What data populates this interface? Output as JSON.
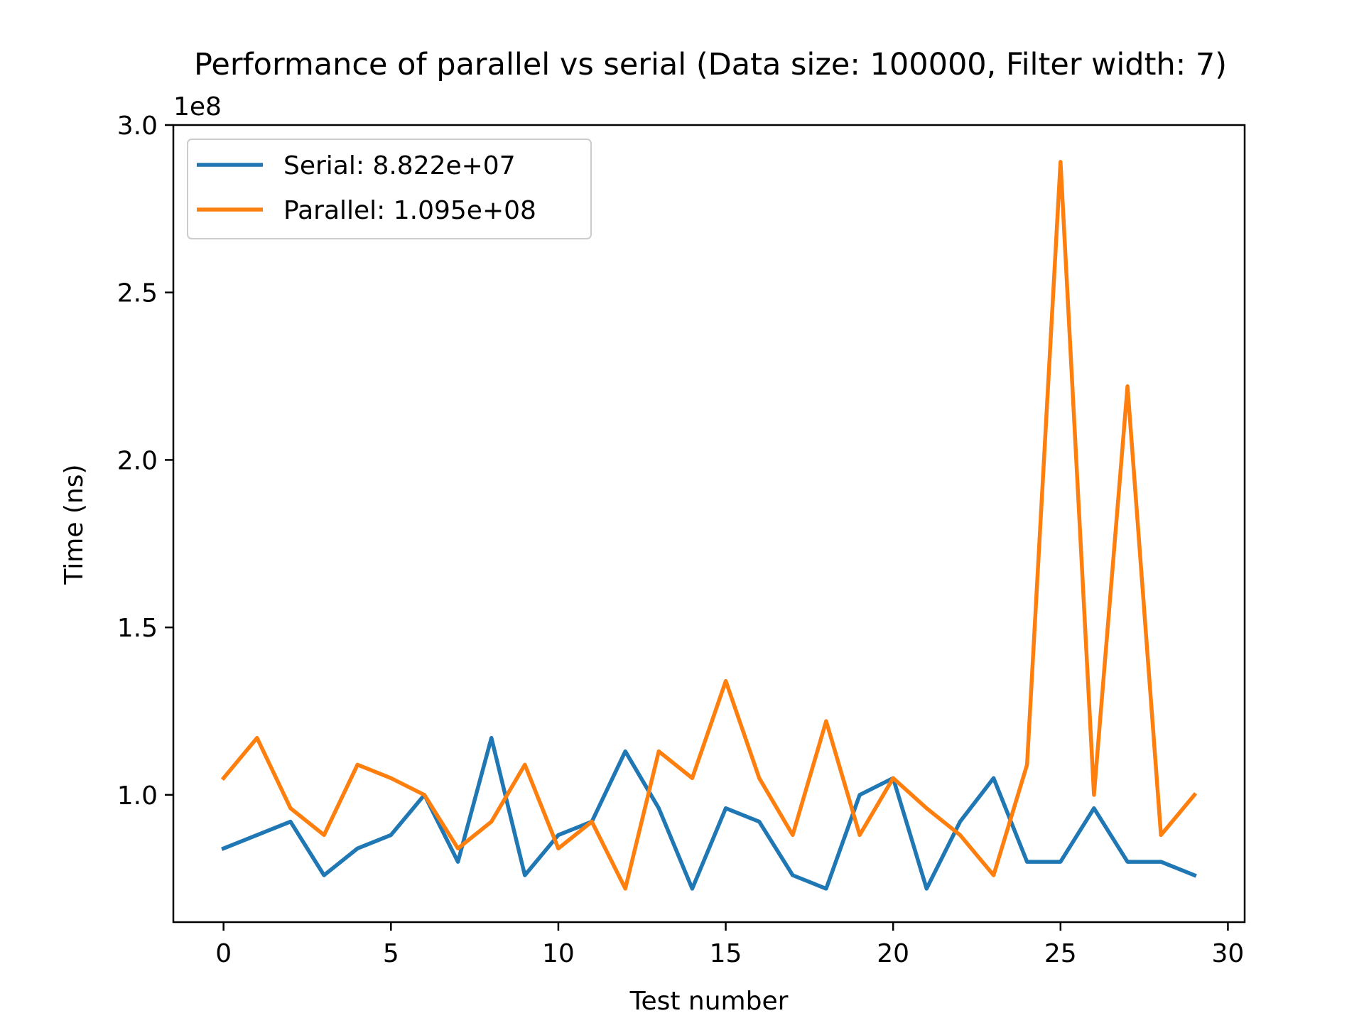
{
  "chart_data": {
    "type": "line",
    "title": "Performance of parallel vs serial (Data size: 100000, Filter width: 7)",
    "xlabel": "Test number",
    "ylabel": "Time (ns)",
    "y_offset_label": "1e8",
    "y_scale": 100000000,
    "xlim": [
      -1.5,
      30.5
    ],
    "ylim": [
      62000000,
      300000000
    ],
    "xticks": [
      0,
      5,
      10,
      15,
      20,
      25,
      30
    ],
    "yticks": [
      100000000,
      150000000,
      200000000,
      250000000,
      300000000
    ],
    "ytick_labels": [
      "1.0",
      "1.5",
      "2.0",
      "2.5",
      "3.0"
    ],
    "grid": false,
    "legend_position": "top-left",
    "x": [
      0,
      1,
      2,
      3,
      4,
      5,
      6,
      7,
      8,
      9,
      10,
      11,
      12,
      13,
      14,
      15,
      16,
      17,
      18,
      19,
      20,
      21,
      22,
      23,
      24,
      25,
      26,
      27,
      28,
      29
    ],
    "series": [
      {
        "name": "Serial: 8.822e+07",
        "color": "#1f77b4",
        "values": [
          84000000,
          88000000,
          92000000,
          76000000,
          84000000,
          88000000,
          100000000,
          80000000,
          117000000,
          76000000,
          88000000,
          92000000,
          113000000,
          96000000,
          72000000,
          96000000,
          92000000,
          76000000,
          72000000,
          100000000,
          105000000,
          72000000,
          92000000,
          105000000,
          80000000,
          80000000,
          96000000,
          80000000,
          80000000,
          76000000
        ]
      },
      {
        "name": "Parallel: 1.095e+08",
        "color": "#ff7f0e",
        "values": [
          105000000,
          117000000,
          96000000,
          88000000,
          109000000,
          105000000,
          100000000,
          84000000,
          92000000,
          109000000,
          84000000,
          92000000,
          72000000,
          113000000,
          105000000,
          134000000,
          105000000,
          88000000,
          122000000,
          88000000,
          105000000,
          96000000,
          88000000,
          76000000,
          109000000,
          289000000,
          100000000,
          222000000,
          88000000,
          100000000
        ]
      }
    ]
  }
}
